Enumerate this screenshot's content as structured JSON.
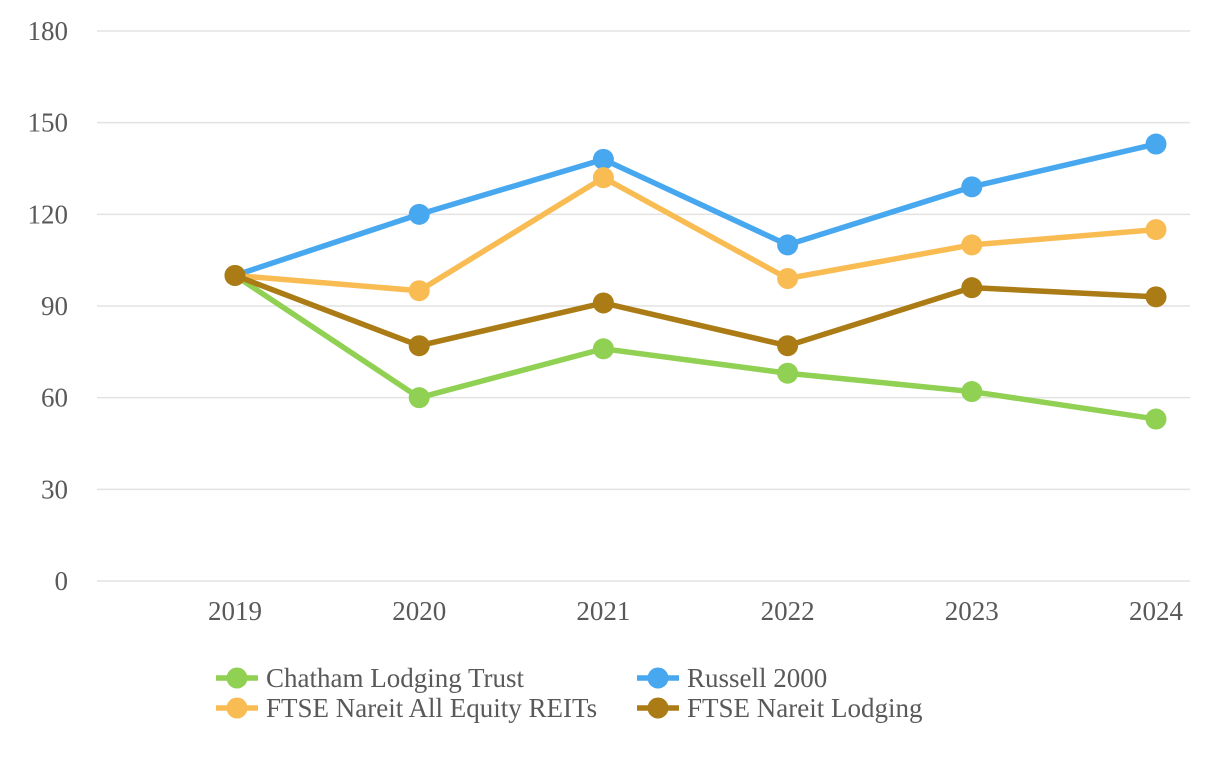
{
  "chart_data": {
    "type": "line",
    "title": "",
    "xlabel": "",
    "ylabel": "",
    "categories": [
      "2019",
      "2020",
      "2021",
      "2022",
      "2023",
      "2024"
    ],
    "series": [
      {
        "name": "Chatham Lodging Trust",
        "color": "#90d052",
        "values": [
          100,
          60,
          76,
          68,
          62,
          53
        ]
      },
      {
        "name": "Russell 2000",
        "color": "#47a7ef",
        "values": [
          100,
          120,
          138,
          110,
          129,
          143
        ]
      },
      {
        "name": "FTSE Nareit All Equity REITs",
        "color": "#f8bc53",
        "values": [
          100,
          95,
          132,
          99,
          110,
          115
        ]
      },
      {
        "name": "FTSE Nareit Lodging",
        "color": "#ab7b15",
        "values": [
          100,
          77,
          91,
          77,
          96,
          93
        ]
      }
    ],
    "ylim": [
      0,
      180
    ],
    "y_ticks": [
      0,
      30,
      60,
      90,
      120,
      150,
      180
    ],
    "grid": "horizontal-only",
    "legend_position": "bottom",
    "styles": {
      "grid_color": "#e3e3e3",
      "axis_text_color": "#595959",
      "background_color": "#ffffff",
      "marker_radius": 10.5,
      "line_width": 5.5
    }
  }
}
